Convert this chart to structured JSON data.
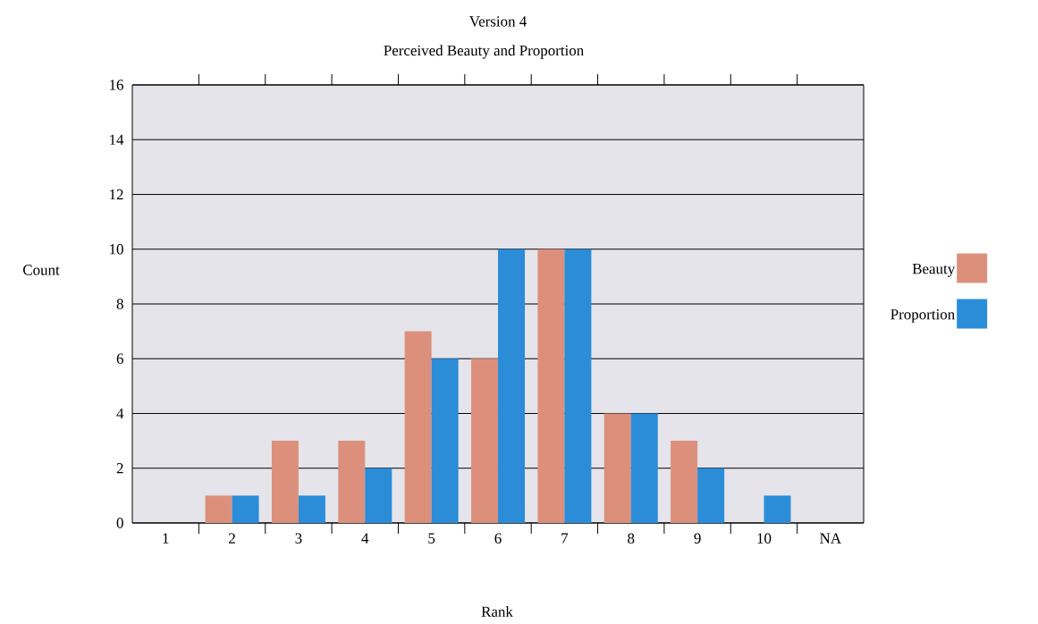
{
  "chart_data": {
    "type": "bar",
    "title": "Version 4",
    "subtitle": "Perceived Beauty and Proportion",
    "xlabel": "Rank",
    "ylabel": "Count",
    "categories": [
      "1",
      "2",
      "3",
      "4",
      "5",
      "6",
      "7",
      "8",
      "9",
      "10",
      "NA"
    ],
    "series": [
      {
        "name": "Beauty",
        "color": "#dc907c",
        "values": [
          0,
          1,
          3,
          3,
          7,
          6,
          10,
          4,
          3,
          0,
          0
        ]
      },
      {
        "name": "Proportion",
        "color": "#2b8cd8",
        "values": [
          0,
          1,
          1,
          2,
          6,
          10,
          10,
          4,
          2,
          1,
          0
        ]
      }
    ],
    "ylim": [
      0,
      16
    ],
    "yticks": [
      0,
      2,
      4,
      6,
      8,
      10,
      12,
      14,
      16
    ],
    "grid": "y",
    "legend": "right"
  }
}
